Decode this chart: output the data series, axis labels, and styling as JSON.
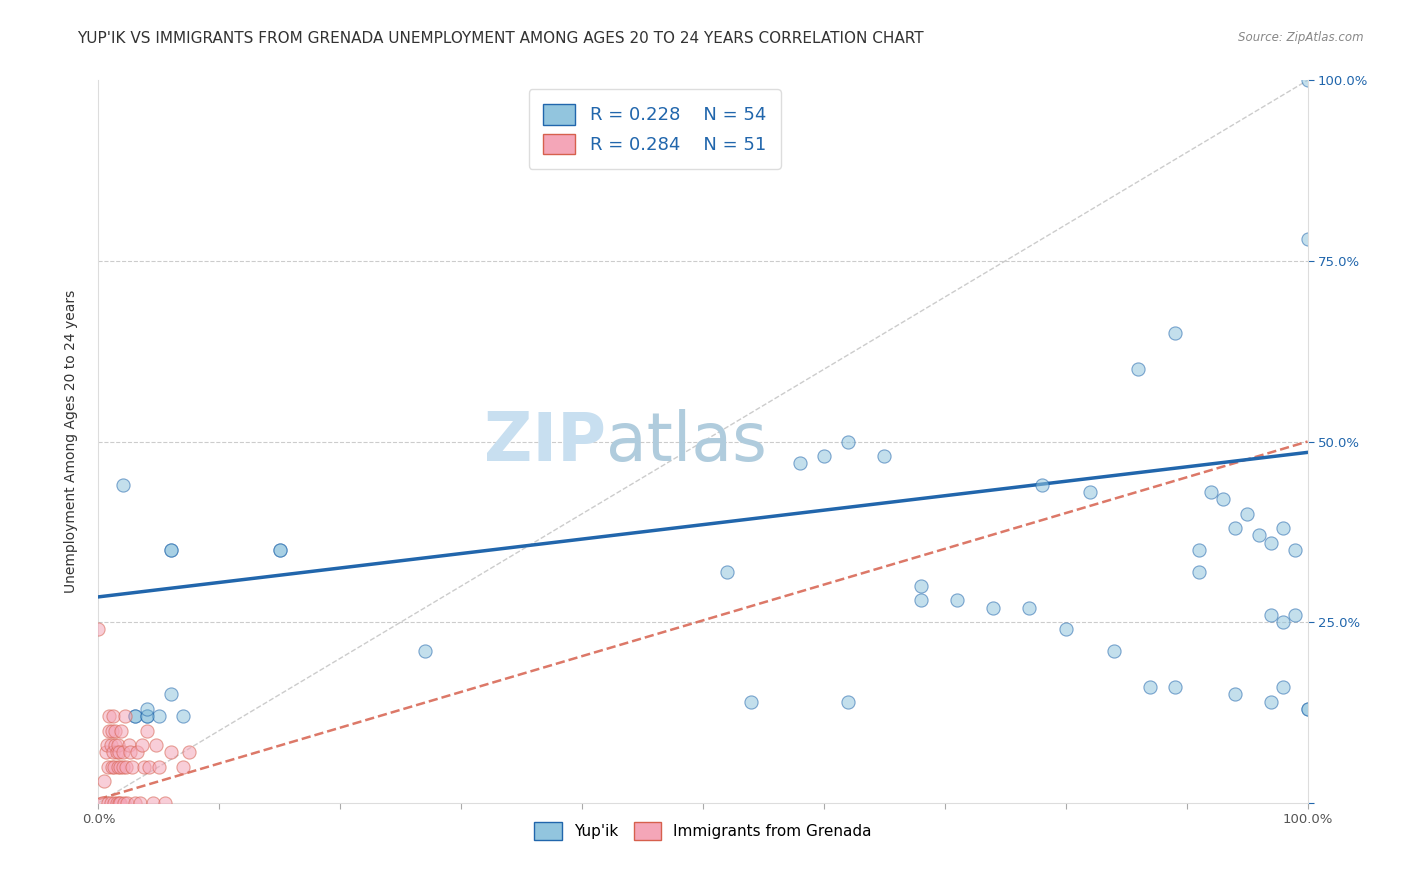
{
  "title": "YUP'IK VS IMMIGRANTS FROM GRENADA UNEMPLOYMENT AMONG AGES 20 TO 24 YEARS CORRELATION CHART",
  "source": "Source: ZipAtlas.com",
  "ylabel": "Unemployment Among Ages 20 to 24 years",
  "xlim": [
    0,
    1.0
  ],
  "ylim": [
    0,
    1.0
  ],
  "xtick_vals": [
    0.0,
    0.1,
    0.2,
    0.3,
    0.4,
    0.5,
    0.6,
    0.7,
    0.8,
    0.9,
    1.0
  ],
  "xticklabels": [
    "0.0%",
    "",
    "",
    "",
    "",
    "",
    "",
    "",
    "",
    "",
    "100.0%"
  ],
  "ytick_vals": [
    0.0,
    0.25,
    0.5,
    0.75,
    1.0
  ],
  "yticklabels_right": [
    "",
    "25.0%",
    "50.0%",
    "75.0%",
    "100.0%"
  ],
  "legend_R1": "0.228",
  "legend_N1": "54",
  "legend_R2": "0.284",
  "legend_N2": "51",
  "blue_color": "#92c5de",
  "pink_color": "#f4a6b8",
  "line_blue": "#2166ac",
  "line_pink": "#d6604d",
  "diag_color": "#cccccc",
  "watermark_zip": "ZIP",
  "watermark_atlas": "atlas",
  "blue_scatter_x": [
    0.02,
    0.06,
    0.06,
    0.15,
    0.15,
    0.27,
    0.03,
    0.03,
    0.04,
    0.04,
    0.04,
    0.05,
    0.06,
    0.07,
    0.52,
    0.58,
    0.6,
    0.62,
    0.65,
    0.68,
    0.74,
    0.77,
    0.78,
    0.82,
    0.86,
    0.89,
    0.91,
    0.92,
    0.93,
    0.94,
    0.95,
    0.96,
    0.97,
    0.97,
    0.98,
    0.98,
    0.99,
    0.99,
    1.0,
    1.0,
    0.54,
    0.62,
    0.68,
    0.71,
    0.8,
    0.84,
    0.87,
    0.89,
    0.91,
    0.94,
    0.97,
    0.98,
    1.0,
    1.0
  ],
  "blue_scatter_y": [
    0.44,
    0.35,
    0.35,
    0.35,
    0.35,
    0.21,
    0.12,
    0.12,
    0.12,
    0.12,
    0.13,
    0.12,
    0.15,
    0.12,
    0.32,
    0.47,
    0.48,
    0.5,
    0.48,
    0.3,
    0.27,
    0.27,
    0.44,
    0.43,
    0.6,
    0.65,
    0.35,
    0.43,
    0.42,
    0.38,
    0.4,
    0.37,
    0.36,
    0.26,
    0.38,
    0.25,
    0.26,
    0.35,
    0.78,
    1.0,
    0.14,
    0.14,
    0.28,
    0.28,
    0.24,
    0.21,
    0.16,
    0.16,
    0.32,
    0.15,
    0.14,
    0.16,
    0.13,
    0.13
  ],
  "pink_scatter_x": [
    0.0,
    0.003,
    0.005,
    0.006,
    0.007,
    0.008,
    0.008,
    0.009,
    0.009,
    0.01,
    0.01,
    0.011,
    0.011,
    0.012,
    0.012,
    0.013,
    0.013,
    0.014,
    0.014,
    0.015,
    0.015,
    0.016,
    0.016,
    0.017,
    0.017,
    0.018,
    0.018,
    0.019,
    0.02,
    0.02,
    0.021,
    0.022,
    0.023,
    0.024,
    0.025,
    0.026,
    0.028,
    0.03,
    0.032,
    0.034,
    0.036,
    0.038,
    0.04,
    0.042,
    0.045,
    0.048,
    0.05,
    0.055,
    0.06,
    0.07,
    0.075
  ],
  "pink_scatter_y": [
    0.24,
    0.0,
    0.03,
    0.07,
    0.08,
    0.0,
    0.05,
    0.1,
    0.12,
    0.08,
    0.0,
    0.05,
    0.1,
    0.12,
    0.07,
    0.0,
    0.05,
    0.08,
    0.1,
    0.0,
    0.07,
    0.05,
    0.08,
    0.0,
    0.07,
    0.05,
    0.0,
    0.1,
    0.07,
    0.05,
    0.0,
    0.12,
    0.05,
    0.0,
    0.08,
    0.07,
    0.05,
    0.0,
    0.07,
    0.0,
    0.08,
    0.05,
    0.1,
    0.05,
    0.0,
    0.08,
    0.05,
    0.0,
    0.07,
    0.05,
    0.07
  ],
  "blue_line_y_start": 0.285,
  "blue_line_y_end": 0.485,
  "pink_line_y_start": 0.005,
  "pink_line_y_end": 0.5,
  "background_color": "#ffffff",
  "grid_color": "#cccccc",
  "title_fontsize": 11,
  "axis_label_fontsize": 10,
  "tick_fontsize": 9.5,
  "legend_fontsize": 13,
  "watermark_fontsize_zip": 48,
  "watermark_fontsize_atlas": 48,
  "watermark_color_zip": "#c8dff0",
  "watermark_color_atlas": "#b0ccdd",
  "scatter_size": 90,
  "scatter_alpha": 0.55,
  "scatter_linewidth": 0.8
}
